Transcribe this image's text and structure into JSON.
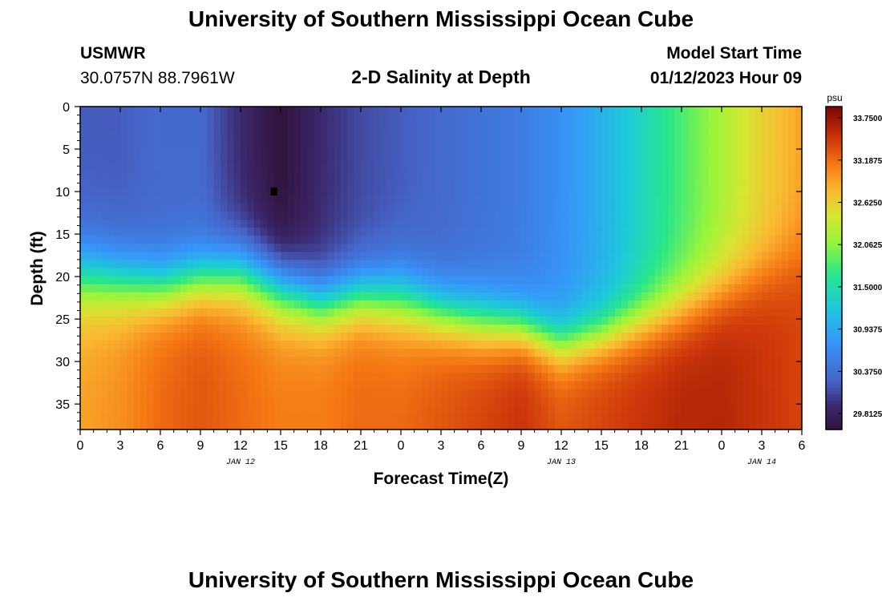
{
  "header": {
    "title": "University of Southern Mississippi Ocean Cube",
    "station": "USMWR",
    "coords": "30.0757N  88.7961W",
    "plot_title": "2-D Salinity at Depth",
    "model_label": "Model Start Time",
    "model_time": "01/12/2023 Hour 09"
  },
  "footer": {
    "title": "University of Southern Mississippi Ocean Cube"
  },
  "chart_data": {
    "type": "heatmap",
    "title": "2-D Salinity at Depth",
    "xlabel": "Forecast Time(Z)",
    "ylabel": "Depth (ft)",
    "x_hours_range": [
      0,
      54
    ],
    "x_tick_labels": [
      "0",
      "3",
      "6",
      "9",
      "12",
      "15",
      "18",
      "21",
      "0",
      "3",
      "6",
      "9",
      "12",
      "15",
      "18",
      "21",
      "0",
      "3",
      "6"
    ],
    "date_labels": [
      {
        "label": "JAN 12",
        "hour": 12
      },
      {
        "label": "JAN 13",
        "hour": 36
      },
      {
        "label": "JAN 14",
        "hour": 51
      }
    ],
    "y_ticks": [
      0,
      5,
      10,
      15,
      20,
      25,
      30,
      35
    ],
    "ylim": [
      0,
      38
    ],
    "y_inverted": true,
    "colorbar": {
      "unit": "psu",
      "range": [
        29.6,
        33.9
      ],
      "tick_values": [
        33.75,
        33.1875,
        32.625,
        32.0625,
        31.5,
        30.9375,
        30.375,
        29.8125
      ],
      "tick_labels": [
        "33.7500",
        "33.1875",
        "32.6250",
        "32.0625",
        "31.5000",
        "30.9375",
        "30.3750",
        "29.8125"
      ]
    },
    "salinity_columns_psu": [
      {
        "hour": 0,
        "surface": 30.2,
        "mixed_depth": 16,
        "transition_width": 11,
        "bottom": 32.9
      },
      {
        "hour": 3,
        "surface": 30.2,
        "mixed_depth": 17,
        "transition_width": 10,
        "bottom": 33.0
      },
      {
        "hour": 6,
        "surface": 30.3,
        "mixed_depth": 18,
        "transition_width": 9,
        "bottom": 33.2
      },
      {
        "hour": 9,
        "surface": 30.3,
        "mixed_depth": 17,
        "transition_width": 9,
        "bottom": 33.3
      },
      {
        "hour": 12,
        "surface": 29.9,
        "mixed_depth": 16,
        "transition_width": 10,
        "bottom": 33.2
      },
      {
        "hour": 15,
        "surface": 29.6,
        "mixed_depth": 18,
        "transition_width": 10,
        "bottom": 33.1
      },
      {
        "hour": 18,
        "surface": 29.9,
        "mixed_depth": 20,
        "transition_width": 9,
        "bottom": 33.1
      },
      {
        "hour": 21,
        "surface": 30.1,
        "mixed_depth": 19,
        "transition_width": 9,
        "bottom": 33.2
      },
      {
        "hour": 24,
        "surface": 30.2,
        "mixed_depth": 19,
        "transition_width": 10,
        "bottom": 33.2
      },
      {
        "hour": 27,
        "surface": 30.3,
        "mixed_depth": 21,
        "transition_width": 9,
        "bottom": 33.3
      },
      {
        "hour": 30,
        "surface": 30.4,
        "mixed_depth": 22,
        "transition_width": 9,
        "bottom": 33.4
      },
      {
        "hour": 33,
        "surface": 30.5,
        "mixed_depth": 23,
        "transition_width": 8,
        "bottom": 33.5
      },
      {
        "hour": 36,
        "surface": 30.7,
        "mixed_depth": 25,
        "transition_width": 8,
        "bottom": 33.3
      },
      {
        "hour": 39,
        "surface": 31.0,
        "mixed_depth": 24,
        "transition_width": 8,
        "bottom": 33.4
      },
      {
        "hour": 42,
        "surface": 31.4,
        "mixed_depth": 22,
        "transition_width": 9,
        "bottom": 33.5
      },
      {
        "hour": 45,
        "surface": 31.8,
        "mixed_depth": 20,
        "transition_width": 10,
        "bottom": 33.6
      },
      {
        "hour": 48,
        "surface": 32.2,
        "mixed_depth": 18,
        "transition_width": 10,
        "bottom": 33.6
      },
      {
        "hour": 51,
        "surface": 32.6,
        "mixed_depth": 16,
        "transition_width": 10,
        "bottom": 33.5
      },
      {
        "hour": 54,
        "surface": 32.9,
        "mixed_depth": 14,
        "transition_width": 10,
        "bottom": 33.4
      }
    ],
    "marker": {
      "hour": 14.5,
      "depth": 10
    }
  }
}
